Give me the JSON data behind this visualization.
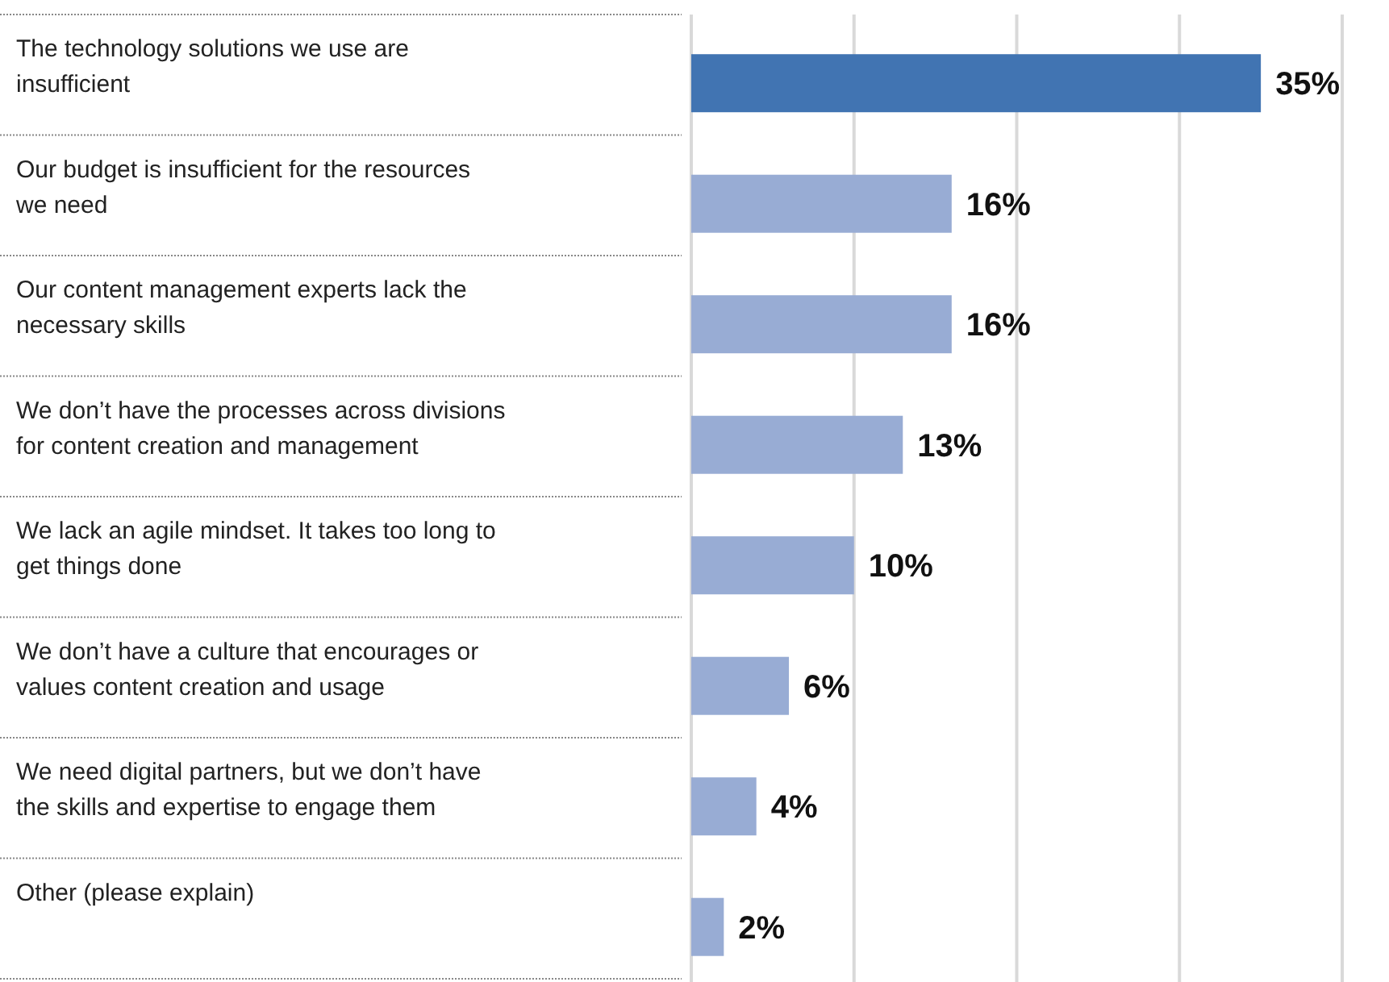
{
  "chart_data": {
    "type": "bar",
    "orientation": "horizontal",
    "categories": [
      "The technology solutions we use are insufficient",
      "Our budget is insufficient for the resources we need",
      "Our content management experts lack the necessary skills",
      "We don’t have the processes across divisions for content creation and management",
      "We lack an agile mindset. It takes too long to get things done",
      "We don’t have a culture that encourages or values content creation and usage",
      "We need digital partners, but we don’t have the skills and expertise to engage them",
      "Other (please explain)"
    ],
    "values": [
      35,
      16,
      16,
      13,
      10,
      6,
      4,
      2
    ],
    "colors": [
      "#4174b2",
      "#98acd4",
      "#98acd4",
      "#98acd4",
      "#98acd4",
      "#98acd4",
      "#98acd4",
      "#98acd4"
    ],
    "value_labels": [
      "35%",
      "16%",
      "16%",
      "13%",
      "10%",
      "6%",
      "4%",
      "2%"
    ],
    "xlim": [
      0,
      40
    ],
    "xticks": [
      {
        "value": 0,
        "label": null
      },
      {
        "value": 10,
        "label": null
      },
      {
        "value": 20,
        "label": null
      },
      {
        "value": 30,
        "label": null
      },
      {
        "value": 40,
        "label": null
      }
    ],
    "grid": "x",
    "tick_labels": "y"
  }
}
